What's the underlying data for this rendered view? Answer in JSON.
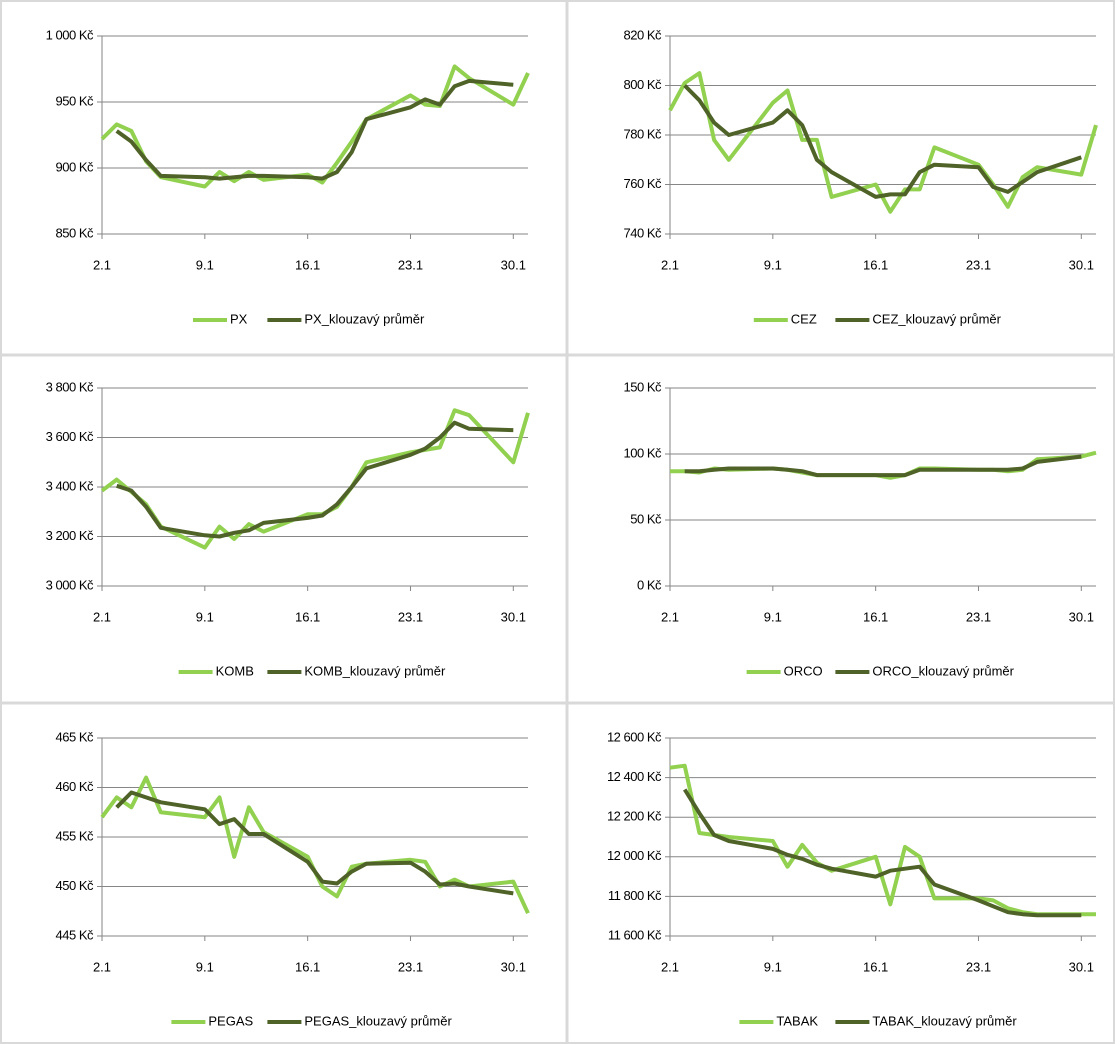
{
  "chart_data": [
    {
      "type": "line",
      "x": [
        2,
        3,
        4,
        5,
        6,
        9,
        10,
        11,
        12,
        13,
        16,
        17,
        18,
        19,
        20,
        23,
        24,
        25,
        26,
        27,
        30,
        31
      ],
      "xlim": [
        2,
        31
      ],
      "xticks": [
        {
          "value": 2,
          "label": "2.1"
        },
        {
          "value": 9,
          "label": "9.1"
        },
        {
          "value": 16,
          "label": "16.1"
        },
        {
          "value": 23,
          "label": "23.1"
        },
        {
          "value": 30,
          "label": "30.1"
        }
      ],
      "ylim": [
        850,
        1000
      ],
      "yticks": [
        {
          "value": 850,
          "label": "850 Kč"
        },
        {
          "value": 900,
          "label": "900 Kč"
        },
        {
          "value": 950,
          "label": "950 Kč"
        },
        {
          "value": 1000,
          "label": "1 000 Kč"
        }
      ],
      "grid": true,
      "series": [
        {
          "name": "PX",
          "color": "#92d050",
          "values": [
            922,
            933,
            928,
            905,
            893,
            886,
            897,
            890,
            897,
            891,
            895,
            889,
            904,
            920,
            937,
            955,
            948,
            947,
            977,
            968,
            948,
            972
          ]
        },
        {
          "name": "PX_klouzavý průměr",
          "color": "#4f6228",
          "values": [
            null,
            928,
            920,
            906,
            894,
            893,
            892,
            893,
            894,
            894,
            893,
            892,
            897,
            912,
            937,
            946,
            952,
            948,
            962,
            966,
            963,
            null
          ]
        }
      ]
    },
    {
      "type": "line",
      "x": [
        2,
        3,
        4,
        5,
        6,
        9,
        10,
        11,
        12,
        13,
        16,
        17,
        18,
        19,
        20,
        23,
        24,
        25,
        26,
        27,
        30,
        31
      ],
      "xlim": [
        2,
        31
      ],
      "xticks": [
        {
          "value": 2,
          "label": "2.1"
        },
        {
          "value": 9,
          "label": "9.1"
        },
        {
          "value": 16,
          "label": "16.1"
        },
        {
          "value": 23,
          "label": "23.1"
        },
        {
          "value": 30,
          "label": "30.1"
        }
      ],
      "ylim": [
        740,
        820
      ],
      "yticks": [
        {
          "value": 740,
          "label": "740 Kč"
        },
        {
          "value": 760,
          "label": "760 Kč"
        },
        {
          "value": 780,
          "label": "780 Kč"
        },
        {
          "value": 800,
          "label": "800 Kč"
        },
        {
          "value": 820,
          "label": "820 Kč"
        }
      ],
      "grid": true,
      "series": [
        {
          "name": "CEZ",
          "color": "#92d050",
          "values": [
            790,
            801,
            805,
            778,
            770,
            793,
            798,
            778,
            778,
            755,
            760,
            749,
            758,
            758,
            775,
            768,
            760,
            751,
            763,
            767,
            764,
            784
          ]
        },
        {
          "name": "CEZ_klouzavý průměr",
          "color": "#4f6228",
          "values": [
            null,
            800,
            794,
            785,
            780,
            785,
            790,
            784,
            770,
            765,
            755,
            756,
            756,
            765,
            768,
            767,
            759,
            757,
            761,
            765,
            771,
            null
          ]
        }
      ]
    },
    {
      "type": "line",
      "x": [
        2,
        3,
        4,
        5,
        6,
        9,
        10,
        11,
        12,
        13,
        16,
        17,
        18,
        19,
        20,
        23,
        24,
        25,
        26,
        27,
        30,
        31
      ],
      "xlim": [
        2,
        31
      ],
      "xticks": [
        {
          "value": 2,
          "label": "2.1"
        },
        {
          "value": 9,
          "label": "9.1"
        },
        {
          "value": 16,
          "label": "16.1"
        },
        {
          "value": 23,
          "label": "23.1"
        },
        {
          "value": 30,
          "label": "30.1"
        }
      ],
      "ylim": [
        3000,
        3800
      ],
      "yticks": [
        {
          "value": 3000,
          "label": "3 000 Kč"
        },
        {
          "value": 3200,
          "label": "3 200 Kč"
        },
        {
          "value": 3400,
          "label": "3 400 Kč"
        },
        {
          "value": 3600,
          "label": "3 600 Kč"
        },
        {
          "value": 3800,
          "label": "3 800 Kč"
        }
      ],
      "grid": true,
      "series": [
        {
          "name": "KOMB",
          "color": "#92d050",
          "values": [
            3385,
            3430,
            3380,
            3330,
            3240,
            3155,
            3240,
            3190,
            3250,
            3220,
            3290,
            3290,
            3320,
            3400,
            3500,
            3540,
            3550,
            3560,
            3710,
            3690,
            3500,
            3700
          ]
        },
        {
          "name": "KOMB_klouzavý průměr",
          "color": "#4f6228",
          "values": [
            null,
            3405,
            3385,
            3320,
            3235,
            3205,
            3200,
            3215,
            3225,
            3255,
            3275,
            3285,
            3330,
            3400,
            3475,
            3530,
            3555,
            3600,
            3660,
            3635,
            3630,
            null
          ]
        }
      ]
    },
    {
      "type": "line",
      "x": [
        2,
        3,
        4,
        5,
        6,
        9,
        10,
        11,
        12,
        13,
        16,
        17,
        18,
        19,
        20,
        23,
        24,
        25,
        26,
        27,
        30,
        31
      ],
      "xlim": [
        2,
        31
      ],
      "xticks": [
        {
          "value": 2,
          "label": "2.1"
        },
        {
          "value": 9,
          "label": "9.1"
        },
        {
          "value": 16,
          "label": "16.1"
        },
        {
          "value": 23,
          "label": "23.1"
        },
        {
          "value": 30,
          "label": "30.1"
        }
      ],
      "ylim": [
        0,
        150
      ],
      "yticks": [
        {
          "value": 0,
          "label": "0 Kč"
        },
        {
          "value": 50,
          "label": "50 Kč"
        },
        {
          "value": 100,
          "label": "100 Kč"
        },
        {
          "value": 150,
          "label": "150 Kč"
        }
      ],
      "grid": true,
      "series": [
        {
          "name": "ORCO",
          "color": "#92d050",
          "values": [
            87,
            87,
            86,
            89,
            88,
            89,
            88,
            86,
            84,
            84,
            84,
            82,
            84,
            89,
            89,
            88,
            88,
            87,
            88,
            96,
            98,
            101
          ]
        },
        {
          "name": "ORCO_klouzavý průměr",
          "color": "#4f6228",
          "values": [
            null,
            87,
            87,
            88,
            89,
            89,
            88,
            87,
            84,
            84,
            84,
            84,
            84,
            88,
            88,
            88,
            88,
            88,
            89,
            94,
            98,
            null
          ]
        }
      ]
    },
    {
      "type": "line",
      "x": [
        2,
        3,
        4,
        5,
        6,
        9,
        10,
        11,
        12,
        13,
        16,
        17,
        18,
        19,
        20,
        23,
        24,
        25,
        26,
        27,
        30,
        31
      ],
      "xlim": [
        2,
        31
      ],
      "xticks": [
        {
          "value": 2,
          "label": "2.1"
        },
        {
          "value": 9,
          "label": "9.1"
        },
        {
          "value": 16,
          "label": "16.1"
        },
        {
          "value": 23,
          "label": "23.1"
        },
        {
          "value": 30,
          "label": "30.1"
        }
      ],
      "ylim": [
        445,
        465
      ],
      "yticks": [
        {
          "value": 445,
          "label": "445 Kč"
        },
        {
          "value": 450,
          "label": "450 Kč"
        },
        {
          "value": 455,
          "label": "455 Kč"
        },
        {
          "value": 460,
          "label": "460 Kč"
        },
        {
          "value": 465,
          "label": "465 Kč"
        }
      ],
      "grid": true,
      "series": [
        {
          "name": "PEGAS",
          "color": "#92d050",
          "values": [
            457,
            459,
            458,
            461,
            457.5,
            457,
            459,
            453,
            458,
            455.5,
            453,
            450,
            449,
            452,
            452.3,
            452.7,
            452.5,
            450,
            450.7,
            450,
            450.5,
            447.3
          ]
        },
        {
          "name": "PEGAS_klouzavý průměr",
          "color": "#4f6228",
          "values": [
            null,
            458,
            459.5,
            459,
            458.5,
            457.8,
            456.3,
            456.8,
            455.3,
            455.3,
            452.5,
            450.5,
            450.3,
            451.5,
            452.3,
            452.4,
            451.5,
            450.2,
            450.3,
            450,
            449.3,
            null
          ]
        }
      ]
    },
    {
      "type": "line",
      "x": [
        2,
        3,
        4,
        5,
        6,
        9,
        10,
        11,
        12,
        13,
        16,
        17,
        18,
        19,
        20,
        23,
        24,
        25,
        26,
        27,
        30,
        31
      ],
      "xlim": [
        2,
        31
      ],
      "xticks": [
        {
          "value": 2,
          "label": "2.1"
        },
        {
          "value": 9,
          "label": "9.1"
        },
        {
          "value": 16,
          "label": "16.1"
        },
        {
          "value": 23,
          "label": "23.1"
        },
        {
          "value": 30,
          "label": "30.1"
        }
      ],
      "ylim": [
        11600,
        12600
      ],
      "yticks": [
        {
          "value": 11600,
          "label": "11 600 Kč"
        },
        {
          "value": 11800,
          "label": "11 800 Kč"
        },
        {
          "value": 12000,
          "label": "12 000 Kč"
        },
        {
          "value": 12200,
          "label": "12 200 Kč"
        },
        {
          "value": 12400,
          "label": "12 400 Kč"
        },
        {
          "value": 12600,
          "label": "12 600 Kč"
        }
      ],
      "grid": true,
      "series": [
        {
          "name": "TABAK",
          "color": "#92d050",
          "values": [
            12450,
            12460,
            12120,
            12110,
            12100,
            12080,
            11950,
            12060,
            11970,
            11930,
            12000,
            11760,
            12050,
            12000,
            11790,
            11790,
            11780,
            11740,
            11720,
            11710,
            11710,
            11710
          ]
        },
        {
          "name": "TABAK_klouzavý průměr",
          "color": "#4f6228",
          "values": [
            null,
            12340,
            12220,
            12110,
            12080,
            12040,
            12010,
            11990,
            11960,
            11940,
            11900,
            11930,
            11940,
            11950,
            11860,
            11780,
            11750,
            11720,
            11710,
            11705,
            11705,
            null
          ]
        }
      ]
    }
  ]
}
